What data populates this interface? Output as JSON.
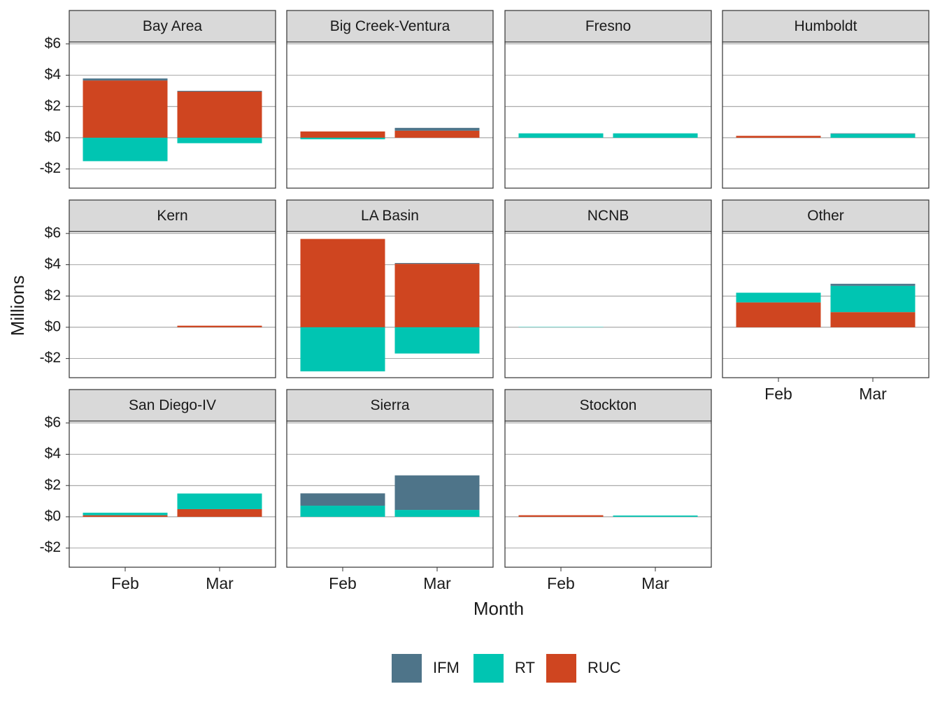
{
  "chart_data": {
    "type": "bar",
    "stacked": true,
    "x_label": "Month",
    "y_label": "Millions",
    "categories": [
      "Feb",
      "Mar"
    ],
    "series": [
      {
        "name": "IFM",
        "color": "#4e7489"
      },
      {
        "name": "RT",
        "color": "#00c5b2"
      },
      {
        "name": "RUC",
        "color": "#cf4520"
      }
    ],
    "ylim": [
      -3.225,
      6.125
    ],
    "yticks": [
      {
        "value": -2,
        "label": "-$2"
      },
      {
        "value": 0,
        "label": "$0"
      },
      {
        "value": 2,
        "label": "$2"
      },
      {
        "value": 4,
        "label": "$4"
      },
      {
        "value": 6,
        "label": "$6"
      }
    ],
    "grid": true,
    "legend": "bottom",
    "facets": [
      {
        "title": "Bay Area",
        "values": [
          [
            0.13,
            0.05
          ],
          [
            -1.5,
            -0.35
          ],
          [
            3.66,
            2.95
          ]
        ]
      },
      {
        "title": "Big Creek-Ventura",
        "values": [
          [
            0,
            0.18
          ],
          [
            -0.1,
            0
          ],
          [
            0.4,
            0.45
          ]
        ]
      },
      {
        "title": "Fresno",
        "values": [
          [
            0,
            0
          ],
          [
            0.28,
            0.28
          ],
          [
            0,
            0
          ]
        ]
      },
      {
        "title": "Humboldt",
        "values": [
          [
            0,
            0.03
          ],
          [
            0,
            0.25
          ],
          [
            0.12,
            0
          ]
        ]
      },
      {
        "title": "Kern",
        "values": [
          [
            0,
            0
          ],
          [
            0,
            0
          ],
          [
            0,
            0.1
          ]
        ]
      },
      {
        "title": "LA Basin",
        "values": [
          [
            0,
            0.05
          ],
          [
            -2.82,
            -1.68
          ],
          [
            5.65,
            4.06
          ]
        ]
      },
      {
        "title": "NCNB",
        "values": [
          [
            0,
            0
          ],
          [
            0.02,
            0
          ],
          [
            0,
            0
          ]
        ]
      },
      {
        "title": "Other",
        "values": [
          [
            0,
            0.13
          ],
          [
            0.62,
            1.68
          ],
          [
            1.59,
            0.97
          ]
        ]
      },
      {
        "title": "San Diego-IV",
        "values": [
          [
            0,
            0
          ],
          [
            0.16,
            1.0
          ],
          [
            0.1,
            0.49
          ]
        ]
      },
      {
        "title": "Sierra",
        "values": [
          [
            0.79,
            2.21
          ],
          [
            0.71,
            0.44
          ],
          [
            0,
            0
          ]
        ]
      },
      {
        "title": "Stockton",
        "values": [
          [
            0,
            0
          ],
          [
            0,
            0.08
          ],
          [
            0.1,
            0
          ]
        ]
      }
    ]
  }
}
